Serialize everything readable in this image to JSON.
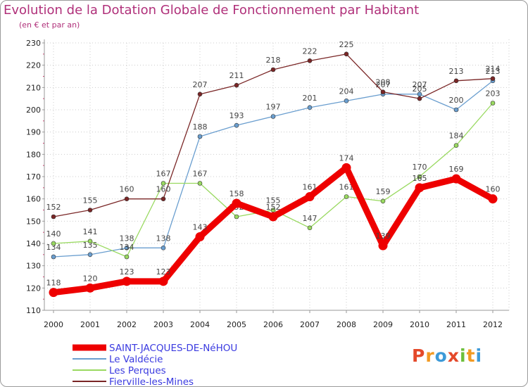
{
  "title": "Evolution de la Dotation Globale de Fonctionnement par Habitant",
  "subtitle": "(en € et par an)",
  "logo": [
    "P",
    "r",
    "o",
    "x",
    "i",
    "t",
    "i"
  ],
  "colors": {
    "title": "#b0307a",
    "axis": "#999999",
    "grid": "#cccccc",
    "logo": [
      "#e4492a",
      "#f29a22",
      "#3d9ad8",
      "#e4492a",
      "#6cbf3a",
      "#f29a22",
      "#3d9ad8"
    ]
  },
  "chart_data": {
    "type": "line",
    "title": "Evolution de la Dotation Globale de Fonctionnement par Habitant",
    "ylabel": "(en € et par an)",
    "x": [
      2000,
      2001,
      2002,
      2003,
      2004,
      2005,
      2006,
      2007,
      2008,
      2009,
      2010,
      2011,
      2012
    ],
    "xlabels": [
      "2000",
      "2001",
      "2002",
      "2003",
      "2004",
      "2005",
      "2006",
      "2007",
      "2008",
      "2009",
      "2010",
      "2011",
      "2012"
    ],
    "ylim": [
      110,
      230
    ],
    "yticks": [
      110,
      120,
      130,
      140,
      150,
      160,
      170,
      180,
      190,
      200,
      210,
      220,
      230
    ],
    "series": [
      {
        "name": "SAINT-JACQUES-DE-NéHOU",
        "color": "#ee0000",
        "emphasis": true,
        "values": [
          118,
          120,
          123,
          123,
          143,
          158,
          152,
          161,
          174,
          139,
          165,
          169,
          160
        ]
      },
      {
        "name": "Le Valdécie",
        "color": "#6a9ecf",
        "values": [
          134,
          135,
          138,
          138,
          188,
          193,
          197,
          201,
          204,
          207,
          207,
          200,
          213
        ]
      },
      {
        "name": "Les Perques",
        "color": "#99d960",
        "values": [
          140,
          141,
          134,
          167,
          167,
          152,
          155,
          147,
          161,
          159,
          170,
          184,
          203
        ]
      },
      {
        "name": "Fierville-les-Mines",
        "color": "#7a2626",
        "values": [
          152,
          155,
          160,
          160,
          207,
          211,
          218,
          222,
          225,
          208,
          205,
          213,
          214
        ]
      }
    ],
    "legend": "bottom-left"
  }
}
